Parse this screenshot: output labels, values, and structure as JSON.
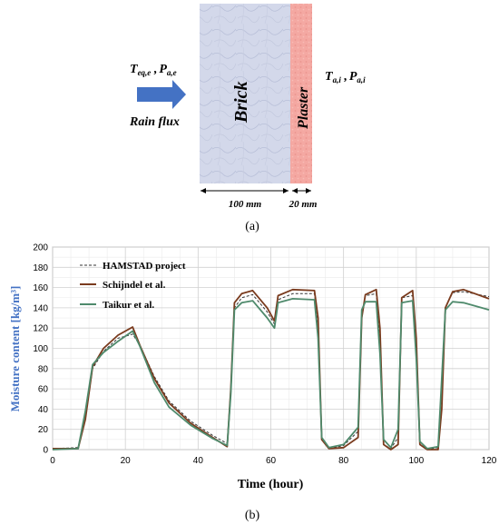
{
  "diagram": {
    "outside_conditions": {
      "t_main": "T",
      "t_sub": "eq,e",
      "sep": " ,",
      "p_main": "P",
      "p_sub": "a,e"
    },
    "rain_flux_label": "Rain flux",
    "brick_label": "Brick",
    "plaster_label": "Plaster",
    "inside_conditions": {
      "t_main": "T",
      "t_sub": "a,i",
      "sep": " ,",
      "p_main": "P",
      "p_sub": "a,i"
    },
    "brick_width_label": "100 mm",
    "plaster_width_label": "20 mm",
    "colors": {
      "arrow": "#4472c4",
      "brick": "#cdd3e8",
      "plaster": "#f4a7a1"
    },
    "arrow_icon": "right-arrow-icon"
  },
  "caption_a": "(a)",
  "caption_b": "(b)",
  "chart_data": {
    "type": "line",
    "xlabel": "Time (hour)",
    "ylabel": "Moisture content [kg/m³]",
    "xlim": [
      0,
      120
    ],
    "ylim": [
      0,
      200
    ],
    "xticks": [
      0,
      20,
      40,
      60,
      80,
      100,
      120
    ],
    "yticks": [
      0,
      20,
      40,
      60,
      80,
      100,
      120,
      140,
      160,
      180,
      200
    ],
    "grid": true,
    "legend_position": "top-left",
    "series": [
      {
        "name": "HAMSTAD project",
        "style": "dashed",
        "color": "#333333",
        "points": [
          [
            0,
            1
          ],
          [
            7,
            2
          ],
          [
            9,
            30
          ],
          [
            11,
            80
          ],
          [
            14,
            97
          ],
          [
            18,
            110
          ],
          [
            22,
            114
          ],
          [
            24,
            103
          ],
          [
            28,
            72
          ],
          [
            32,
            48
          ],
          [
            38,
            28
          ],
          [
            44,
            14
          ],
          [
            48,
            6
          ],
          [
            49,
            55
          ],
          [
            50,
            140
          ],
          [
            52,
            150
          ],
          [
            55,
            153
          ],
          [
            59,
            136
          ],
          [
            61,
            124
          ],
          [
            62,
            148
          ],
          [
            66,
            154
          ],
          [
            72,
            154
          ],
          [
            73,
            120
          ],
          [
            74,
            10
          ],
          [
            76,
            1
          ],
          [
            80,
            4
          ],
          [
            84,
            18
          ],
          [
            85,
            130
          ],
          [
            86,
            152
          ],
          [
            89,
            154
          ],
          [
            90,
            110
          ],
          [
            91,
            5
          ],
          [
            93,
            1
          ],
          [
            95,
            12
          ],
          [
            96,
            150
          ],
          [
            99,
            152
          ],
          [
            100,
            100
          ],
          [
            101,
            5
          ],
          [
            103,
            0
          ],
          [
            106,
            2
          ],
          [
            107,
            60
          ],
          [
            108,
            140
          ],
          [
            110,
            155
          ],
          [
            113,
            156
          ],
          [
            120,
            151
          ]
        ]
      },
      {
        "name": "Schijndel et al.",
        "style": "solid",
        "color": "#7a3b1e",
        "points": [
          [
            0,
            1
          ],
          [
            7,
            1
          ],
          [
            9,
            30
          ],
          [
            11,
            82
          ],
          [
            14,
            100
          ],
          [
            18,
            113
          ],
          [
            22,
            121
          ],
          [
            24,
            103
          ],
          [
            28,
            70
          ],
          [
            32,
            46
          ],
          [
            38,
            26
          ],
          [
            44,
            12
          ],
          [
            48,
            3
          ],
          [
            49,
            60
          ],
          [
            50,
            145
          ],
          [
            52,
            154
          ],
          [
            55,
            157
          ],
          [
            59,
            140
          ],
          [
            61,
            127
          ],
          [
            62,
            152
          ],
          [
            66,
            158
          ],
          [
            72,
            157
          ],
          [
            73,
            130
          ],
          [
            74,
            10
          ],
          [
            76,
            1
          ],
          [
            80,
            2
          ],
          [
            84,
            12
          ],
          [
            85,
            130
          ],
          [
            86,
            153
          ],
          [
            89,
            158
          ],
          [
            90,
            120
          ],
          [
            91,
            5
          ],
          [
            93,
            0
          ],
          [
            95,
            5
          ],
          [
            96,
            150
          ],
          [
            99,
            157
          ],
          [
            100,
            110
          ],
          [
            101,
            5
          ],
          [
            103,
            0
          ],
          [
            106,
            0
          ],
          [
            107,
            40
          ],
          [
            108,
            140
          ],
          [
            110,
            156
          ],
          [
            113,
            158
          ],
          [
            120,
            149
          ]
        ]
      },
      {
        "name": "Taikur et al.",
        "style": "solid",
        "color": "#4f8a6c",
        "points": [
          [
            0,
            0
          ],
          [
            7,
            1
          ],
          [
            9,
            38
          ],
          [
            11,
            84
          ],
          [
            14,
            96
          ],
          [
            18,
            107
          ],
          [
            22,
            117
          ],
          [
            24,
            102
          ],
          [
            28,
            66
          ],
          [
            32,
            42
          ],
          [
            38,
            24
          ],
          [
            44,
            11
          ],
          [
            48,
            4
          ],
          [
            49,
            55
          ],
          [
            50,
            138
          ],
          [
            52,
            145
          ],
          [
            55,
            147
          ],
          [
            59,
            130
          ],
          [
            61,
            120
          ],
          [
            62,
            145
          ],
          [
            66,
            149
          ],
          [
            72,
            148
          ],
          [
            73,
            110
          ],
          [
            74,
            12
          ],
          [
            76,
            2
          ],
          [
            80,
            5
          ],
          [
            84,
            22
          ],
          [
            85,
            138
          ],
          [
            86,
            146
          ],
          [
            89,
            146
          ],
          [
            90,
            95
          ],
          [
            91,
            10
          ],
          [
            93,
            2
          ],
          [
            95,
            20
          ],
          [
            96,
            145
          ],
          [
            99,
            147
          ],
          [
            100,
            90
          ],
          [
            101,
            8
          ],
          [
            103,
            1
          ],
          [
            106,
            3
          ],
          [
            107,
            70
          ],
          [
            108,
            138
          ],
          [
            110,
            146
          ],
          [
            113,
            145
          ],
          [
            120,
            138
          ]
        ]
      }
    ]
  }
}
